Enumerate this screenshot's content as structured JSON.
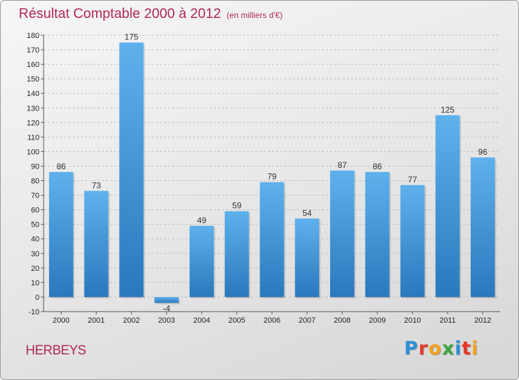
{
  "title": "Résultat Comptable 2000 à 2012",
  "unit_label": "(en milliers d'€)",
  "commune": "HERBEYS",
  "logo": {
    "letters": [
      "P",
      "r",
      "o",
      "x",
      "i",
      "t",
      "i"
    ],
    "colors": [
      "#2b8fd6",
      "#e6392b",
      "#f2a11a",
      "#3aa63a",
      "#2b8fd6",
      "#e6392b",
      "#f2a11a"
    ]
  },
  "colors": {
    "bar_top": "#5fb1ec",
    "bar_bottom": "#2a78bd",
    "title": "#b0285a"
  },
  "chart_data": {
    "type": "bar",
    "title": "Résultat Comptable 2000 à 2012",
    "xlabel": "",
    "ylabel": "",
    "categories": [
      "2000",
      "2001",
      "2002",
      "2003",
      "2004",
      "2005",
      "2006",
      "2007",
      "2008",
      "2009",
      "2010",
      "2011",
      "2012"
    ],
    "values": [
      86,
      73,
      175,
      -4,
      49,
      59,
      79,
      54,
      87,
      86,
      77,
      125,
      96
    ],
    "ylim": [
      -10,
      180
    ],
    "yticks": [
      -10,
      0,
      10,
      20,
      30,
      40,
      50,
      60,
      70,
      80,
      90,
      100,
      110,
      120,
      130,
      140,
      150,
      160,
      170,
      180
    ],
    "grid": "horizontal dashed"
  }
}
